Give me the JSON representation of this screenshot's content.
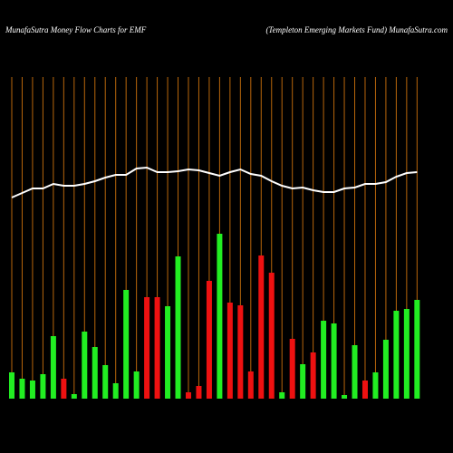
{
  "chart_data": {
    "type": "bar",
    "title": "MunafaSutra  Money Flow  Charts for EMF",
    "subtitle": "(Templeton  Emerging Markets Fund) MunafaSutra.com",
    "ylim": [
      0,
      355
    ],
    "grid_color": "#b8660b",
    "series": [
      {
        "type": "bar",
        "colors": [
          "#22ee22",
          "#22ee22",
          "#22ee22",
          "#22ee22",
          "#22ee22",
          "#ee1111",
          "#22ee22",
          "#22ee22",
          "#22ee22",
          "#22ee22",
          "#22ee22",
          "#22ee22",
          "#22ee22",
          "#ee1111",
          "#ee1111",
          "#22ee22",
          "#22ee22",
          "#ee1111",
          "#ee1111",
          "#ee1111",
          "#22ee22",
          "#ee1111",
          "#ee1111",
          "#ee1111",
          "#ee1111",
          "#ee1111",
          "#22ee22",
          "#ee1111",
          "#22ee22",
          "#ee1111",
          "#22ee22",
          "#22ee22",
          "#22ee22",
          "#22ee22",
          "#ee1111",
          "#22ee22",
          "#22ee22",
          "#22ee22",
          "#22ee22",
          "#22ee22"
        ],
        "values": [
          29,
          22,
          20,
          27,
          69,
          22,
          5,
          74,
          57,
          37,
          17,
          120,
          30,
          112,
          112,
          102,
          157,
          7,
          14,
          130,
          182,
          106,
          103,
          30,
          158,
          139,
          7,
          66,
          38,
          51,
          86,
          83,
          4,
          59,
          20,
          29,
          65,
          97,
          99,
          109
        ]
      },
      {
        "type": "line",
        "color": "#ffffff",
        "values": [
          222,
          227,
          232,
          232,
          237,
          235,
          235,
          237,
          240,
          244,
          247,
          247,
          254,
          255,
          250,
          250,
          251,
          253,
          252,
          249,
          246,
          250,
          253,
          248,
          246,
          240,
          235,
          232,
          233,
          230,
          228,
          228,
          232,
          233,
          237,
          237,
          239,
          245,
          249,
          250
        ]
      }
    ]
  }
}
